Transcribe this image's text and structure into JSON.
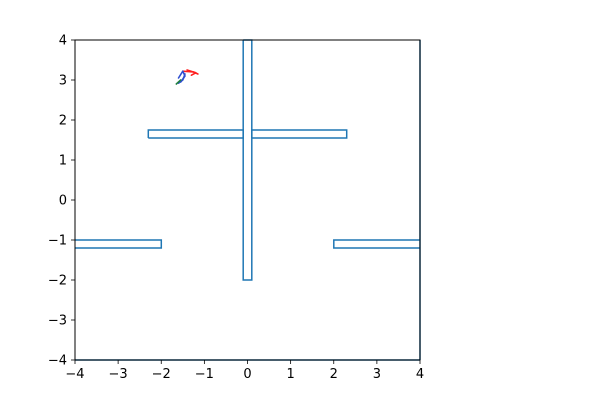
{
  "chart_data": {
    "type": "line",
    "title": "",
    "xlabel": "",
    "ylabel": "",
    "xlim": [
      -4,
      4
    ],
    "ylim": [
      -4,
      4
    ],
    "xticks": [
      -4,
      -3,
      -2,
      -1,
      0,
      1,
      2,
      3,
      4
    ],
    "yticks": [
      -4,
      -3,
      -2,
      -1,
      0,
      1,
      2,
      3,
      4
    ],
    "xtick_labels": [
      "−4",
      "−3",
      "−2",
      "−1",
      "0",
      "1",
      "2",
      "3",
      "4"
    ],
    "ytick_labels": [
      "−4",
      "−3",
      "−2",
      "−1",
      "0",
      "1",
      "2",
      "3",
      "4"
    ],
    "grid": false,
    "legend": "none",
    "colors": {
      "walls": "#1f77b4",
      "agent_red": "#ff2020",
      "agent_blue": "#3050d0",
      "agent_green": "#208040"
    },
    "walls": [
      {
        "x": [
          -0.1,
          -0.1,
          0.1,
          0.1,
          -0.1
        ],
        "y": [
          4,
          -2,
          -2,
          4,
          4
        ]
      },
      {
        "x": [
          -2.3,
          -0.1,
          -0.1,
          -2.3,
          -2.3
        ],
        "y": [
          1.55,
          1.55,
          1.75,
          1.75,
          1.55
        ]
      },
      {
        "x": [
          0.1,
          2.3,
          2.3,
          0.1,
          0.1
        ],
        "y": [
          1.55,
          1.55,
          1.75,
          1.75,
          1.55
        ]
      },
      {
        "x": [
          -4,
          -2,
          -2,
          -4
        ],
        "y": [
          -1.2,
          -1.2,
          -1.0,
          -1.0
        ]
      },
      {
        "x": [
          4,
          2,
          2,
          4
        ],
        "y": [
          -1.2,
          -1.2,
          -1.0,
          -1.0
        ]
      },
      {
        "x": [
          -4,
          4
        ],
        "y": [
          -4,
          -4
        ]
      },
      {
        "x": [
          4,
          4
        ],
        "y": [
          -4,
          4
        ]
      }
    ],
    "agent_strokes": [
      {
        "color": "#ff2020",
        "x": [
          -1.5,
          -1.25,
          -1.15
        ],
        "y": [
          3.22,
          3.2,
          3.15
        ]
      },
      {
        "color": "#ff2020",
        "x": [
          -1.4,
          -1.2,
          -1.3
        ],
        "y": [
          3.25,
          3.18,
          3.12
        ]
      },
      {
        "color": "#3050d0",
        "x": [
          -1.55,
          -1.45,
          -1.5,
          -1.6
        ],
        "y": [
          2.95,
          3.1,
          3.22,
          3.05
        ]
      },
      {
        "color": "#3050d0",
        "x": [
          -1.6,
          -1.5,
          -1.45
        ],
        "y": [
          2.92,
          3.0,
          3.15
        ]
      },
      {
        "color": "#208040",
        "x": [
          -1.65,
          -1.55
        ],
        "y": [
          2.9,
          3.0
        ]
      }
    ]
  }
}
